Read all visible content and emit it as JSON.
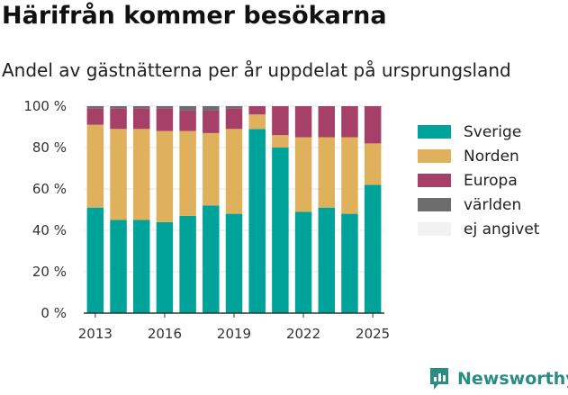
{
  "header": {
    "title": "Härifrån kommer besökarna",
    "subtitle": "Andel av gästnätterna per år uppdelat på ursprungsland"
  },
  "brand": {
    "name": "Newsworthy",
    "icon": "newsworthy-logo-icon"
  },
  "colors": {
    "Sverige": "#00a39a",
    "Norden": "#dfb15d",
    "Europa": "#a74069",
    "världen": "#6c6c6c",
    "ej angivet": "#f2f2f2",
    "grid": "#e4e4e4",
    "axis": "#333333"
  },
  "chart_data": {
    "type": "bar",
    "stacked": true,
    "categories": [
      "2013",
      "2014",
      "2015",
      "2016",
      "2017",
      "2018",
      "2019",
      "2020",
      "2021",
      "2022",
      "2023",
      "2024",
      "2025"
    ],
    "x_tick_labels": [
      "2013",
      "2016",
      "2019",
      "2022",
      "2025"
    ],
    "y_tick_labels": [
      "0 %",
      "20 %",
      "40 %",
      "60 %",
      "80 %",
      "100 %"
    ],
    "ylim": [
      0,
      100
    ],
    "grid": true,
    "legend_position": "right",
    "series": [
      {
        "name": "Sverige",
        "values": [
          51,
          45,
          45,
          44,
          47,
          52,
          48,
          89,
          80,
          49,
          51,
          48,
          62
        ]
      },
      {
        "name": "Norden",
        "values": [
          40,
          44,
          44,
          44,
          41,
          35,
          41,
          7,
          6,
          36,
          34,
          37,
          20
        ]
      },
      {
        "name": "Europa",
        "values": [
          8,
          10,
          10,
          11,
          10,
          11,
          10,
          4,
          14,
          15,
          15,
          15,
          18
        ]
      },
      {
        "name": "världen",
        "values": [
          1,
          1,
          1,
          1,
          2,
          2,
          1,
          0,
          0,
          0,
          0,
          0,
          0
        ]
      },
      {
        "name": "ej angivet",
        "values": [
          0,
          0,
          0,
          0,
          0,
          0,
          0,
          0,
          0,
          0,
          0,
          0,
          0
        ]
      }
    ]
  }
}
